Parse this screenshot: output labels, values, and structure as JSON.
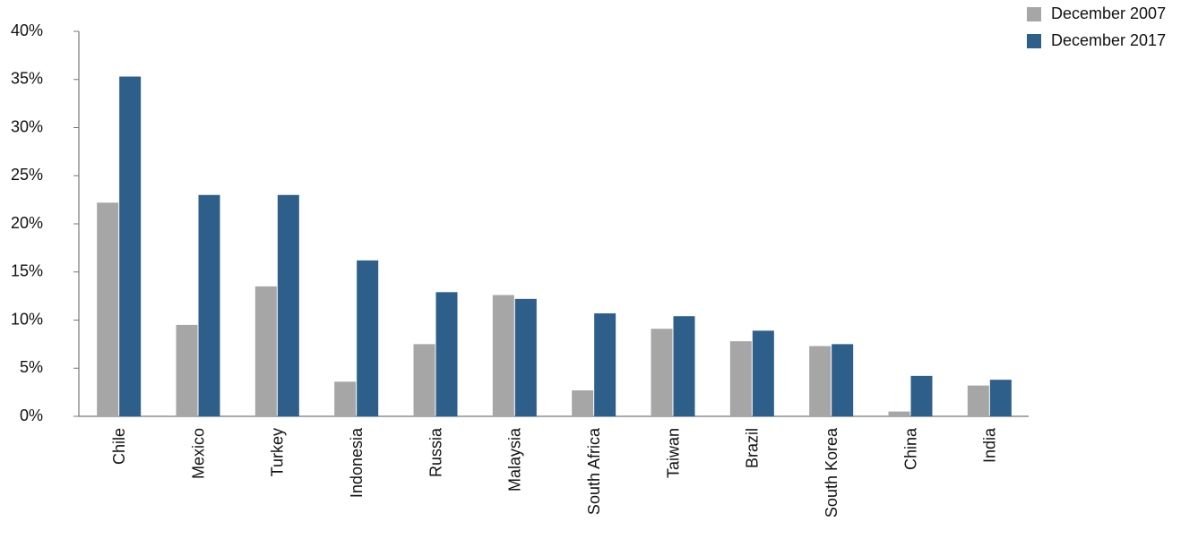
{
  "chart_data": {
    "type": "bar",
    "categories": [
      "Chile",
      "Mexico",
      "Turkey",
      "Indonesia",
      "Russia",
      "Malaysia",
      "South Africa",
      "Taiwan",
      "Brazil",
      "South Korea",
      "China",
      "India"
    ],
    "series": [
      {
        "name": "December 2007",
        "color": "#a6a6a6",
        "values": [
          22.2,
          9.5,
          13.5,
          3.6,
          7.5,
          12.6,
          2.7,
          9.1,
          7.8,
          7.3,
          0.5,
          3.2
        ]
      },
      {
        "name": "December 2017",
        "color": "#2e5f8a",
        "values": [
          35.3,
          23.0,
          23.0,
          16.2,
          12.9,
          12.2,
          10.7,
          10.4,
          8.9,
          7.5,
          4.2,
          3.8
        ]
      }
    ],
    "ylim": [
      0,
      40
    ],
    "yticks": [
      {
        "value": 0,
        "label": "0%"
      },
      {
        "value": 5,
        "label": "5%"
      },
      {
        "value": 10,
        "label": "10%"
      },
      {
        "value": 15,
        "label": "15%"
      },
      {
        "value": 20,
        "label": "20%"
      },
      {
        "value": 25,
        "label": "25%"
      },
      {
        "value": 30,
        "label": "30%"
      },
      {
        "value": 35,
        "label": "35%"
      },
      {
        "value": 40,
        "label": "40%"
      }
    ],
    "grid": false,
    "legend": "upper right"
  }
}
